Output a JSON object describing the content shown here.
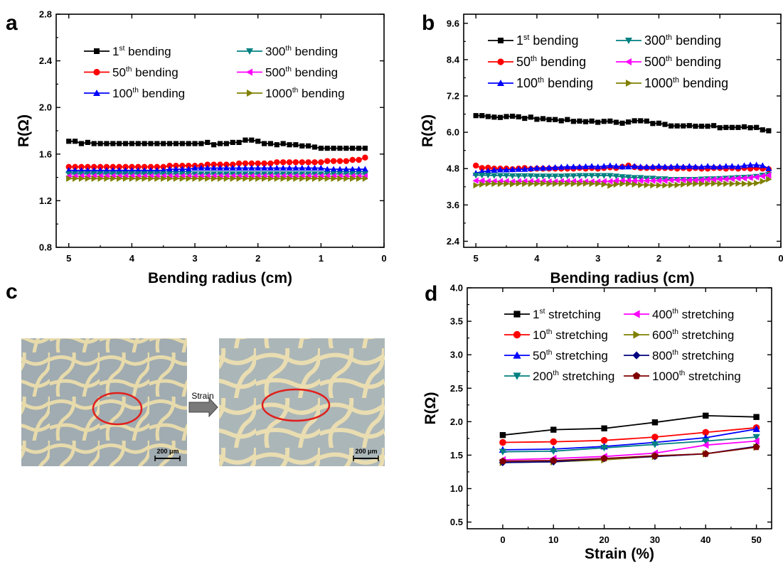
{
  "panels": {
    "a": "a",
    "b": "b",
    "c": "c",
    "d": "d"
  },
  "photo_panel": {
    "arrow_label": "Strain",
    "scale_bar_left": "200 μm",
    "scale_bar_right": "200 μm",
    "ellipse_color": "#e0201c",
    "background_color": "#c9c0a0",
    "pore_color": "#8ea3bd"
  },
  "chart_data": [
    {
      "panel": "a",
      "type": "line",
      "xlabel": "Bending radius (cm)",
      "ylabel": "R(Ω)",
      "xlim": [
        5.2,
        0
      ],
      "ylim": [
        0.8,
        2.8
      ],
      "xticks": [
        "5",
        "4",
        "3",
        "2",
        "1",
        "0"
      ],
      "yticks": [
        "0.8",
        "1.2",
        "1.6",
        "2.0",
        "2.4",
        "2.8"
      ],
      "legend": "inside top, 2 columns",
      "x": [
        5.0,
        4.9,
        4.8,
        4.7,
        4.6,
        4.5,
        4.4,
        4.3,
        4.2,
        4.1,
        4.0,
        3.9,
        3.8,
        3.7,
        3.6,
        3.5,
        3.4,
        3.3,
        3.2,
        3.1,
        3.0,
        2.9,
        2.8,
        2.7,
        2.6,
        2.5,
        2.4,
        2.3,
        2.2,
        2.1,
        2.0,
        1.9,
        1.8,
        1.7,
        1.6,
        1.5,
        1.4,
        1.3,
        1.2,
        1.1,
        1.0,
        0.9,
        0.8,
        0.7,
        0.6,
        0.5,
        0.4,
        0.3
      ],
      "series": [
        {
          "name": "1st bending",
          "label_main": "1",
          "label_sup": "st",
          "label_rest": "bending",
          "color": "#000000",
          "marker": "square",
          "values": [
            1.71,
            1.71,
            1.69,
            1.7,
            1.69,
            1.69,
            1.69,
            1.69,
            1.69,
            1.69,
            1.69,
            1.69,
            1.69,
            1.69,
            1.69,
            1.69,
            1.69,
            1.69,
            1.69,
            1.69,
            1.69,
            1.69,
            1.7,
            1.68,
            1.69,
            1.69,
            1.7,
            1.7,
            1.72,
            1.72,
            1.71,
            1.69,
            1.69,
            1.68,
            1.69,
            1.68,
            1.68,
            1.67,
            1.67,
            1.66,
            1.65,
            1.65,
            1.65,
            1.65,
            1.65,
            1.65,
            1.65,
            1.65
          ]
        },
        {
          "name": "50th bending",
          "label_main": "50",
          "label_sup": "th",
          "label_rest": "bending",
          "color": "#ff0000",
          "marker": "circle",
          "values": [
            1.49,
            1.49,
            1.49,
            1.49,
            1.49,
            1.49,
            1.49,
            1.49,
            1.49,
            1.49,
            1.49,
            1.49,
            1.49,
            1.49,
            1.49,
            1.49,
            1.5,
            1.5,
            1.5,
            1.5,
            1.5,
            1.5,
            1.51,
            1.51,
            1.51,
            1.51,
            1.51,
            1.52,
            1.52,
            1.52,
            1.52,
            1.52,
            1.52,
            1.53,
            1.53,
            1.53,
            1.53,
            1.53,
            1.53,
            1.53,
            1.53,
            1.54,
            1.54,
            1.54,
            1.54,
            1.55,
            1.55,
            1.57
          ]
        },
        {
          "name": "100th bending",
          "label_main": "100",
          "label_sup": "th",
          "label_rest": "bending",
          "color": "#0000ff",
          "marker": "triangle-up",
          "values": [
            1.46,
            1.46,
            1.46,
            1.46,
            1.46,
            1.46,
            1.46,
            1.46,
            1.46,
            1.46,
            1.46,
            1.46,
            1.46,
            1.46,
            1.46,
            1.46,
            1.47,
            1.47,
            1.47,
            1.47,
            1.48,
            1.48,
            1.48,
            1.48,
            1.48,
            1.48,
            1.48,
            1.48,
            1.48,
            1.48,
            1.48,
            1.48,
            1.48,
            1.48,
            1.48,
            1.48,
            1.48,
            1.48,
            1.48,
            1.48,
            1.48,
            1.47,
            1.47,
            1.47,
            1.47,
            1.47,
            1.47,
            1.47
          ]
        },
        {
          "name": "300th bending",
          "label_main": "300",
          "label_sup": "th",
          "label_rest": "bending",
          "color": "#008080",
          "marker": "triangle-down",
          "values": [
            1.43,
            1.43,
            1.43,
            1.43,
            1.43,
            1.43,
            1.43,
            1.43,
            1.43,
            1.43,
            1.43,
            1.43,
            1.43,
            1.43,
            1.43,
            1.43,
            1.43,
            1.43,
            1.43,
            1.43,
            1.43,
            1.43,
            1.43,
            1.43,
            1.43,
            1.43,
            1.43,
            1.43,
            1.43,
            1.43,
            1.43,
            1.43,
            1.43,
            1.43,
            1.43,
            1.43,
            1.43,
            1.43,
            1.43,
            1.43,
            1.43,
            1.43,
            1.43,
            1.43,
            1.43,
            1.43,
            1.43,
            1.43
          ]
        },
        {
          "name": "500th bending",
          "label_main": "500",
          "label_sup": "th",
          "label_rest": "bending",
          "color": "#ff00ff",
          "marker": "triangle-left",
          "values": [
            1.41,
            1.41,
            1.41,
            1.41,
            1.41,
            1.41,
            1.41,
            1.41,
            1.41,
            1.41,
            1.41,
            1.41,
            1.41,
            1.41,
            1.41,
            1.41,
            1.41,
            1.41,
            1.41,
            1.41,
            1.41,
            1.41,
            1.41,
            1.41,
            1.41,
            1.41,
            1.41,
            1.41,
            1.41,
            1.41,
            1.41,
            1.41,
            1.41,
            1.41,
            1.41,
            1.41,
            1.41,
            1.41,
            1.41,
            1.41,
            1.41,
            1.41,
            1.41,
            1.41,
            1.41,
            1.41,
            1.41,
            1.41
          ]
        },
        {
          "name": "1000th bending",
          "label_main": "1000",
          "label_sup": "th",
          "label_rest": "bending",
          "color": "#808000",
          "marker": "triangle-right",
          "values": [
            1.39,
            1.39,
            1.39,
            1.39,
            1.39,
            1.39,
            1.39,
            1.39,
            1.39,
            1.39,
            1.39,
            1.39,
            1.39,
            1.39,
            1.39,
            1.39,
            1.39,
            1.39,
            1.39,
            1.39,
            1.39,
            1.39,
            1.39,
            1.39,
            1.39,
            1.39,
            1.39,
            1.39,
            1.39,
            1.39,
            1.39,
            1.39,
            1.39,
            1.39,
            1.39,
            1.39,
            1.39,
            1.39,
            1.39,
            1.39,
            1.39,
            1.39,
            1.39,
            1.39,
            1.39,
            1.39,
            1.39,
            1.39
          ]
        }
      ]
    },
    {
      "panel": "b",
      "type": "line",
      "xlabel": "Bending radius (cm)",
      "ylabel": "R(Ω)",
      "xlim": [
        5.2,
        0
      ],
      "ylim": [
        2.2,
        9.9
      ],
      "xticks": [
        "5",
        "4",
        "3",
        "2",
        "1",
        "0"
      ],
      "yticks": [
        "2.4",
        "3.6",
        "4.8",
        "6.0",
        "7.2",
        "8.4",
        "9.6"
      ],
      "legend": "inside top, 2 columns",
      "x": [
        5.0,
        4.9,
        4.8,
        4.7,
        4.6,
        4.5,
        4.4,
        4.3,
        4.2,
        4.1,
        4.0,
        3.9,
        3.8,
        3.7,
        3.6,
        3.5,
        3.4,
        3.3,
        3.2,
        3.1,
        3.0,
        2.9,
        2.8,
        2.7,
        2.6,
        2.5,
        2.4,
        2.3,
        2.2,
        2.1,
        2.0,
        1.9,
        1.8,
        1.7,
        1.6,
        1.5,
        1.4,
        1.3,
        1.2,
        1.1,
        1.0,
        0.9,
        0.8,
        0.7,
        0.6,
        0.5,
        0.4,
        0.3,
        0.2
      ],
      "series": [
        {
          "name": "1st bending",
          "label_main": "1",
          "label_sup": "st",
          "label_rest": "bending",
          "color": "#000000",
          "marker": "square",
          "values": [
            6.55,
            6.55,
            6.52,
            6.5,
            6.49,
            6.52,
            6.53,
            6.51,
            6.46,
            6.5,
            6.43,
            6.45,
            6.42,
            6.42,
            6.38,
            6.42,
            6.36,
            6.37,
            6.35,
            6.37,
            6.33,
            6.36,
            6.37,
            6.33,
            6.3,
            6.34,
            6.38,
            6.38,
            6.37,
            6.29,
            6.3,
            6.26,
            6.21,
            6.21,
            6.21,
            6.22,
            6.2,
            6.2,
            6.2,
            6.22,
            6.15,
            6.16,
            6.16,
            6.16,
            6.18,
            6.15,
            6.16,
            6.08,
            6.05
          ]
        },
        {
          "name": "50th bending",
          "label_main": "50",
          "label_sup": "th",
          "label_rest": "bending",
          "color": "#ff0000",
          "marker": "circle",
          "values": [
            4.9,
            4.82,
            4.83,
            4.8,
            4.8,
            4.8,
            4.78,
            4.8,
            4.82,
            4.79,
            4.8,
            4.8,
            4.8,
            4.8,
            4.8,
            4.8,
            4.8,
            4.82,
            4.8,
            4.82,
            4.8,
            4.82,
            4.84,
            4.82,
            4.86,
            4.9,
            4.85,
            4.82,
            4.82,
            4.82,
            4.82,
            4.82,
            4.82,
            4.8,
            4.82,
            4.8,
            4.82,
            4.8,
            4.8,
            4.82,
            4.82,
            4.8,
            4.82,
            4.8,
            4.82,
            4.8,
            4.82,
            4.8,
            4.78
          ]
        },
        {
          "name": "100th bending",
          "label_main": "100",
          "label_sup": "th",
          "label_rest": "bending",
          "color": "#0000ff",
          "marker": "triangle-up",
          "values": [
            4.65,
            4.7,
            4.72,
            4.75,
            4.76,
            4.76,
            4.77,
            4.78,
            4.78,
            4.8,
            4.82,
            4.82,
            4.83,
            4.84,
            4.85,
            4.86,
            4.86,
            4.86,
            4.87,
            4.88,
            4.86,
            4.88,
            4.9,
            4.88,
            4.86,
            4.86,
            4.88,
            4.86,
            4.86,
            4.86,
            4.88,
            4.86,
            4.86,
            4.88,
            4.86,
            4.88,
            4.86,
            4.86,
            4.88,
            4.86,
            4.86,
            4.88,
            4.88,
            4.86,
            4.9,
            4.92,
            4.92,
            4.9,
            4.8
          ]
        },
        {
          "name": "300th bending",
          "label_main": "300",
          "label_sup": "th",
          "label_rest": "bending",
          "color": "#008080",
          "marker": "triangle-down",
          "values": [
            4.58,
            4.58,
            4.58,
            4.57,
            4.57,
            4.57,
            4.56,
            4.56,
            4.56,
            4.56,
            4.55,
            4.55,
            4.55,
            4.55,
            4.55,
            4.56,
            4.56,
            4.57,
            4.57,
            4.57,
            4.57,
            4.57,
            4.57,
            4.55,
            4.53,
            4.52,
            4.5,
            4.5,
            4.48,
            4.48,
            4.46,
            4.46,
            4.44,
            4.44,
            4.44,
            4.44,
            4.44,
            4.45,
            4.46,
            4.46,
            4.47,
            4.48,
            4.49,
            4.5,
            4.51,
            4.52,
            4.54,
            4.58,
            4.6
          ]
        },
        {
          "name": "500th bending",
          "label_main": "500",
          "label_sup": "th",
          "label_rest": "bending",
          "color": "#ff00ff",
          "marker": "triangle-left",
          "values": [
            4.4,
            4.4,
            4.38,
            4.38,
            4.38,
            4.38,
            4.37,
            4.38,
            4.38,
            4.38,
            4.38,
            4.38,
            4.37,
            4.37,
            4.38,
            4.38,
            4.38,
            4.38,
            4.37,
            4.37,
            4.37,
            4.38,
            4.38,
            4.4,
            4.4,
            4.4,
            4.4,
            4.4,
            4.4,
            4.4,
            4.4,
            4.4,
            4.42,
            4.42,
            4.42,
            4.42,
            4.42,
            4.42,
            4.44,
            4.44,
            4.45,
            4.45,
            4.46,
            4.48,
            4.48,
            4.5,
            4.52,
            4.55,
            4.58
          ]
        },
        {
          "name": "1000th bending",
          "label_main": "1000",
          "label_sup": "th",
          "label_rest": "bending",
          "color": "#808000",
          "marker": "triangle-right",
          "values": [
            4.25,
            4.28,
            4.3,
            4.3,
            4.3,
            4.3,
            4.29,
            4.31,
            4.3,
            4.3,
            4.3,
            4.31,
            4.3,
            4.3,
            4.31,
            4.3,
            4.3,
            4.3,
            4.31,
            4.3,
            4.3,
            4.28,
            4.24,
            4.28,
            4.3,
            4.3,
            4.28,
            4.26,
            4.26,
            4.25,
            4.25,
            4.25,
            4.26,
            4.26,
            4.28,
            4.3,
            4.3,
            4.3,
            4.3,
            4.31,
            4.3,
            4.3,
            4.3,
            4.31,
            4.3,
            4.3,
            4.32,
            4.38,
            4.45
          ]
        }
      ]
    },
    {
      "panel": "d",
      "type": "line",
      "xlabel": "Strain (%)",
      "ylabel": "R(Ω)",
      "xlim": [
        -7,
        53
      ],
      "ylim": [
        0.4,
        4.0
      ],
      "xticks": [
        "0",
        "10",
        "20",
        "30",
        "40",
        "50"
      ],
      "yticks": [
        "0.5",
        "1.0",
        "1.5",
        "2.0",
        "2.5",
        "3.0",
        "3.5",
        "4.0"
      ],
      "legend": "inside top, 2 columns",
      "x": [
        0,
        10,
        20,
        30,
        40,
        50
      ],
      "series": [
        {
          "name": "1st stretching",
          "label_main": "1",
          "label_sup": "st",
          "label_rest": "stretching",
          "color": "#000000",
          "marker": "square",
          "values": [
            1.8,
            1.88,
            1.9,
            1.99,
            2.09,
            2.07
          ]
        },
        {
          "name": "10th stretching",
          "label_main": "10",
          "label_sup": "th",
          "label_rest": "stretching",
          "color": "#ff0000",
          "marker": "circle",
          "values": [
            1.69,
            1.7,
            1.72,
            1.77,
            1.84,
            1.91
          ]
        },
        {
          "name": "50th stretching",
          "label_main": "50",
          "label_sup": "th",
          "label_rest": "stretching",
          "color": "#0000ff",
          "marker": "triangle-up",
          "values": [
            1.58,
            1.59,
            1.63,
            1.69,
            1.76,
            1.89
          ]
        },
        {
          "name": "200th stretching",
          "label_main": "200",
          "label_sup": "th",
          "label_rest": "stretching",
          "color": "#008080",
          "marker": "triangle-down",
          "values": [
            1.55,
            1.56,
            1.61,
            1.66,
            1.71,
            1.77
          ]
        },
        {
          "name": "400th stretching",
          "label_main": "400",
          "label_sup": "th",
          "label_rest": "stretching",
          "color": "#ff00ff",
          "marker": "triangle-left",
          "values": [
            1.43,
            1.45,
            1.48,
            1.53,
            1.65,
            1.71
          ]
        },
        {
          "name": "600th stretching",
          "label_main": "600",
          "label_sup": "th",
          "label_rest": "stretching",
          "color": "#808000",
          "marker": "triangle-right",
          "values": [
            1.39,
            1.4,
            1.43,
            1.48,
            1.52,
            1.62
          ]
        },
        {
          "name": "800th stretching",
          "label_main": "800",
          "label_sup": "th",
          "label_rest": "stretching",
          "color": "#000080",
          "marker": "diamond",
          "values": [
            1.39,
            1.4,
            1.45,
            1.48,
            1.52,
            1.63
          ]
        },
        {
          "name": "1000th stretching",
          "label_main": "1000",
          "label_sup": "th",
          "label_rest": "stretching",
          "color": "#800000",
          "marker": "pentagon",
          "values": [
            1.41,
            1.42,
            1.45,
            1.49,
            1.52,
            1.62
          ]
        }
      ]
    }
  ]
}
